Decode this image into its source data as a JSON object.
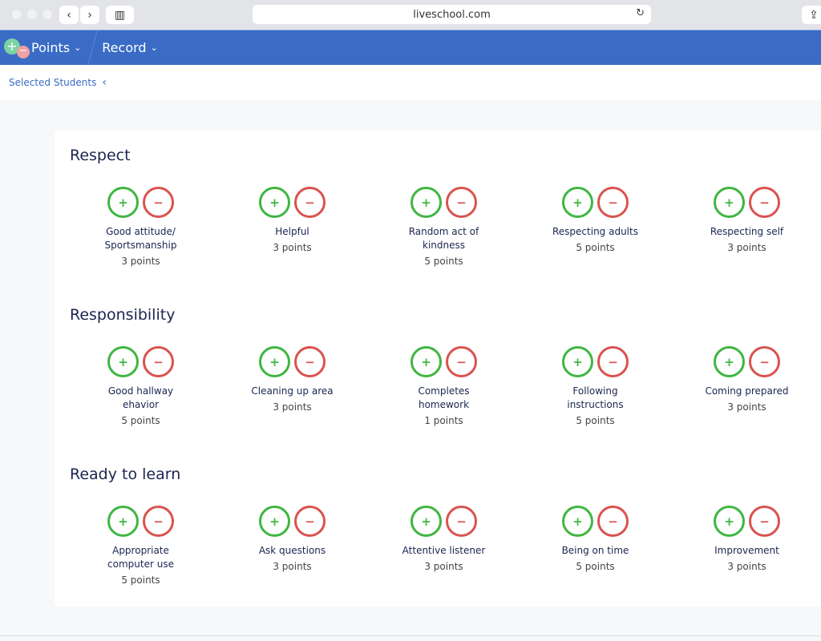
{
  "browser": {
    "url": "liveschool.com"
  },
  "nav": {
    "points_label": "Points",
    "record_label": "Record"
  },
  "subheader": {
    "selected_students": "Selected Students"
  },
  "colors": {
    "nav": "#3a6cc6",
    "positive": "#3fb641",
    "negative": "#d9534f"
  },
  "sections": [
    {
      "title": "Respect",
      "behaviors": [
        {
          "name": "Good attitude/ Sportsmanship",
          "points": "3 points"
        },
        {
          "name": "Helpful",
          "points": "3 points"
        },
        {
          "name": "Random act of kindness",
          "points": "5 points"
        },
        {
          "name": "Respecting adults",
          "points": "5 points"
        },
        {
          "name": "Respecting self",
          "points": "3 points"
        }
      ]
    },
    {
      "title": "Responsibility",
      "behaviors": [
        {
          "name": "Good hallway ehavior",
          "points": "5 points"
        },
        {
          "name": "Cleaning up area",
          "points": "3 points"
        },
        {
          "name": "Completes homework",
          "points": "1 points"
        },
        {
          "name": "Following instructions",
          "points": "5 points"
        },
        {
          "name": "Coming prepared",
          "points": "3 points"
        }
      ]
    },
    {
      "title": "Ready to learn",
      "behaviors": [
        {
          "name": "Appropriate computer use",
          "points": "5 points"
        },
        {
          "name": "Ask questions",
          "points": "3 points"
        },
        {
          "name": "Attentive listener",
          "points": "3 points"
        },
        {
          "name": "Being on time",
          "points": "5 points"
        },
        {
          "name": "Improvement",
          "points": "3 points"
        }
      ]
    }
  ]
}
